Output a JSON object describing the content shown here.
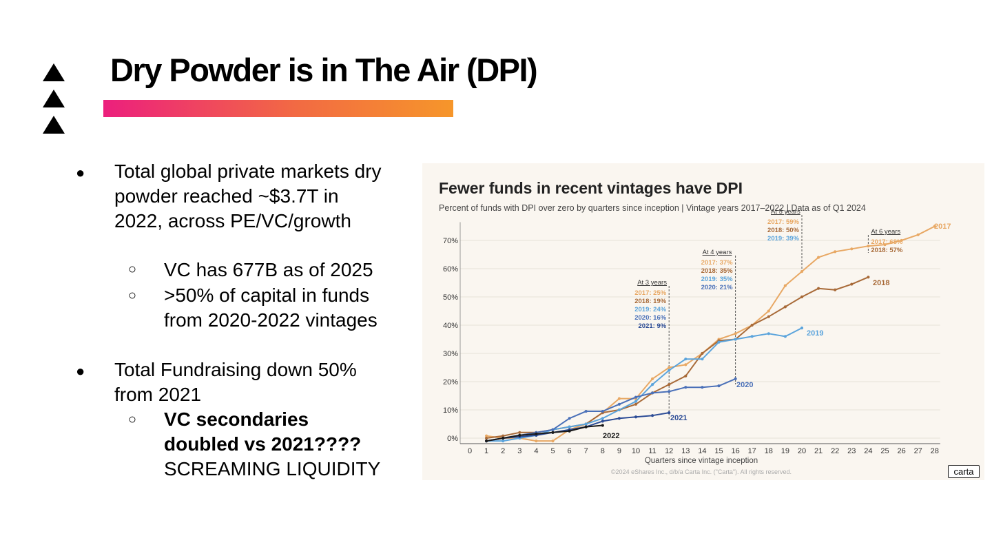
{
  "slide": {
    "title": "Dry Powder is in The Air (DPI)",
    "accent_gradient": [
      "#ec1f7d",
      "#f26a43",
      "#f6962a"
    ],
    "bullets": {
      "b1": {
        "line1": "Total global private markets dry",
        "line2": "powder reached ~$3.7T in",
        "line3": "2022, across PE/VC/growth"
      },
      "b1_sub1": "VC has 677B as of 2025",
      "b1_sub2": {
        "line1": ">50% of capital in funds",
        "line2": "from 2020-2022 vintages"
      },
      "b2": {
        "line1": "Total Fundraising down 50%",
        "line2": "from 2021"
      },
      "b2_sub1": {
        "bold1": "VC secondaries",
        "bold2": "doubled vs 2021????",
        "plain": "SCREAMING LIQUIDITY"
      }
    },
    "bullet_glyphs": {
      "level1": "●",
      "level2": "○"
    }
  },
  "chart_data": {
    "type": "line",
    "title": "Fewer funds in recent vintages have DPI",
    "subtitle": "Percent of funds with DPI over zero by quarters since inception | Vintage years 2017–2022 | Data as of Q1 2024",
    "xlabel": "Quarters since vintage inception",
    "ylabel": "",
    "xlim": [
      0,
      28
    ],
    "ylim": [
      0,
      75
    ],
    "y_ticks": [
      0,
      10,
      20,
      30,
      40,
      50,
      60,
      70
    ],
    "y_tick_labels": [
      "0%",
      "10%",
      "20%",
      "30%",
      "40%",
      "50%",
      "60%",
      "70%"
    ],
    "x_ticks": [
      0,
      1,
      2,
      3,
      4,
      5,
      6,
      7,
      8,
      9,
      10,
      11,
      12,
      13,
      14,
      15,
      16,
      17,
      18,
      19,
      20,
      21,
      22,
      23,
      24,
      25,
      26,
      27,
      28
    ],
    "x_tick_labels": [
      "0",
      "1",
      "2",
      "3",
      "4",
      "5",
      "6",
      "7",
      "8",
      "9",
      "10",
      "11",
      "12",
      "13",
      "14",
      "15",
      "16",
      "17",
      "18",
      "19",
      "20",
      "21",
      "22",
      "23",
      "24",
      "25",
      "26",
      "27",
      "28"
    ],
    "grid": "horizontal",
    "series": [
      {
        "name": "2017",
        "color": "#e8a864",
        "x": [
          1,
          2,
          3,
          4,
          5,
          6,
          7,
          8,
          9,
          10,
          11,
          12,
          13,
          14,
          15,
          16,
          17,
          18,
          19,
          20,
          21,
          22,
          23,
          24,
          25,
          26,
          27,
          28
        ],
        "y": [
          0.8,
          0,
          0,
          -1,
          -1,
          3,
          5,
          9,
          14,
          14,
          21,
          25,
          26,
          30,
          35,
          37,
          40,
          45,
          54,
          59,
          64,
          66,
          67,
          68,
          68.5,
          70,
          72,
          75
        ]
      },
      {
        "name": "2018",
        "color": "#a86a38",
        "x": [
          1,
          2,
          3,
          4,
          5,
          6,
          7,
          8,
          9,
          10,
          11,
          12,
          13,
          14,
          15,
          16,
          17,
          18,
          19,
          20,
          21,
          22,
          23,
          24
        ],
        "y": [
          0,
          0.8,
          2,
          2,
          3,
          4,
          5,
          9,
          10,
          12,
          16,
          19,
          22,
          30,
          34.5,
          35,
          40,
          43,
          46.5,
          50,
          53,
          52.5,
          54.5,
          57
        ]
      },
      {
        "name": "2019",
        "color": "#5ba4dc",
        "x": [
          1,
          2,
          3,
          4,
          5,
          6,
          7,
          8,
          9,
          10,
          11,
          12,
          13,
          14,
          15,
          16,
          17,
          18,
          19,
          20
        ],
        "y": [
          -1,
          -1,
          0,
          1,
          3,
          4,
          5,
          7,
          10,
          13,
          19,
          24,
          28,
          28,
          34,
          35,
          36,
          37,
          36,
          39
        ]
      },
      {
        "name": "2020",
        "color": "#4a70b8",
        "x": [
          1,
          2,
          3,
          4,
          5,
          6,
          7,
          8,
          9,
          10,
          11,
          12,
          13,
          14,
          15,
          16
        ],
        "y": [
          -1,
          0,
          1,
          2,
          3,
          7,
          9.5,
          9.5,
          12,
          14.5,
          16,
          16.5,
          18,
          18,
          18.5,
          21
        ]
      },
      {
        "name": "2021",
        "color": "#2c4c96",
        "x": [
          1,
          2,
          3,
          4,
          5,
          6,
          7,
          8,
          9,
          10,
          11,
          12
        ],
        "y": [
          -1,
          0,
          0.5,
          1,
          2,
          3,
          4,
          6,
          7,
          7.5,
          8,
          9
        ]
      },
      {
        "name": "2022",
        "color": "#1a1a1a",
        "x": [
          1,
          2,
          3,
          4,
          5,
          6,
          7,
          8
        ],
        "y": [
          -1,
          0,
          1,
          1.5,
          2,
          2.5,
          4,
          4.5
        ]
      }
    ],
    "end_labels": [
      {
        "text": "2017",
        "color": "#e8a864"
      },
      {
        "text": "2018",
        "color": "#a86a38"
      },
      {
        "text": "2019",
        "color": "#5ba4dc"
      },
      {
        "text": "2020",
        "color": "#4a70b8"
      },
      {
        "text": "2021",
        "color": "#2c4c96"
      },
      {
        "text": "2022",
        "color": "#1a1a1a"
      }
    ],
    "annotations": [
      {
        "x": 12,
        "heading": "At 3 years",
        "items": [
          {
            "text": "2017: 25%",
            "color": "#e8a864"
          },
          {
            "text": "2018: 19%",
            "color": "#a86a38"
          },
          {
            "text": "2019: 24%",
            "color": "#5ba4dc"
          },
          {
            "text": "2020: 16%",
            "color": "#4a70b8"
          },
          {
            "text": "2021: 9%",
            "color": "#2c4c96"
          }
        ]
      },
      {
        "x": 16,
        "heading": "At 4 years",
        "items": [
          {
            "text": "2017: 37%",
            "color": "#e8a864"
          },
          {
            "text": "2018: 35%",
            "color": "#a86a38"
          },
          {
            "text": "2019: 35%",
            "color": "#5ba4dc"
          },
          {
            "text": "2020: 21%",
            "color": "#4a70b8"
          }
        ]
      },
      {
        "x": 20,
        "heading": "At 5 years",
        "items": [
          {
            "text": "2017: 59%",
            "color": "#e8a864"
          },
          {
            "text": "2018: 50%",
            "color": "#a86a38"
          },
          {
            "text": "2019: 39%",
            "color": "#5ba4dc"
          }
        ]
      },
      {
        "x": 24,
        "heading": "At 6 years",
        "items": [
          {
            "text": "2017: 68%",
            "color": "#e8a864"
          },
          {
            "text": "2018: 57%",
            "color": "#a86a38"
          }
        ]
      }
    ],
    "copyright": "©2024 eShares Inc., d/b/a Carta Inc. (\"Carta\"). All rights reserved.",
    "brand": "carta",
    "background": "#faf6f0"
  }
}
